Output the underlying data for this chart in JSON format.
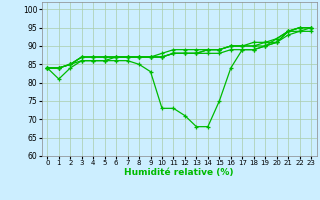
{
  "title": "",
  "xlabel": "Humidité relative (%)",
  "ylabel": "",
  "background_color": "#cceeff",
  "grid_color": "#aaccaa",
  "line_color": "#00bb00",
  "xlim": [
    -0.5,
    23.5
  ],
  "ylim": [
    60,
    102
  ],
  "yticks": [
    60,
    65,
    70,
    75,
    80,
    85,
    90,
    95,
    100
  ],
  "xticks": [
    0,
    1,
    2,
    3,
    4,
    5,
    6,
    7,
    8,
    9,
    10,
    11,
    12,
    13,
    14,
    15,
    16,
    17,
    18,
    19,
    20,
    21,
    22,
    23
  ],
  "series": [
    [
      84,
      81,
      84,
      86,
      86,
      86,
      86,
      86,
      85,
      83,
      73,
      73,
      71,
      68,
      68,
      75,
      84,
      89,
      89,
      90,
      92,
      94,
      94,
      95
    ],
    [
      84,
      84,
      85,
      86,
      86,
      86,
      87,
      87,
      87,
      87,
      87,
      88,
      88,
      88,
      88,
      88,
      89,
      89,
      89,
      90,
      91,
      93,
      94,
      94
    ],
    [
      84,
      84,
      85,
      87,
      87,
      87,
      87,
      87,
      87,
      87,
      87,
      88,
      88,
      88,
      89,
      89,
      90,
      90,
      90,
      90,
      91,
      94,
      95,
      95
    ],
    [
      84,
      84,
      85,
      87,
      87,
      87,
      87,
      87,
      87,
      87,
      87,
      88,
      88,
      88,
      89,
      89,
      90,
      90,
      90,
      91,
      92,
      94,
      95,
      95
    ],
    [
      84,
      84,
      85,
      87,
      87,
      87,
      87,
      87,
      87,
      87,
      88,
      89,
      89,
      89,
      89,
      89,
      90,
      90,
      91,
      91,
      91,
      94,
      95,
      95
    ]
  ]
}
